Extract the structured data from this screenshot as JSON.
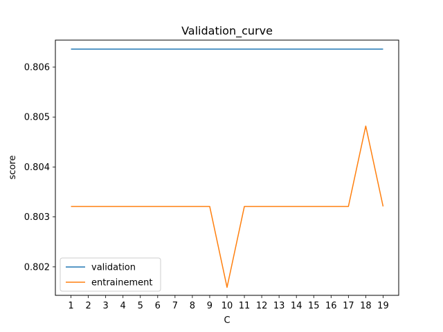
{
  "chart_data": {
    "type": "line",
    "title": "Validation_curve",
    "xlabel": "C",
    "ylabel": "score",
    "x": [
      1,
      2,
      3,
      4,
      5,
      6,
      7,
      8,
      9,
      10,
      11,
      12,
      13,
      14,
      15,
      16,
      17,
      18,
      19
    ],
    "xlim": [
      0.1,
      19.9
    ],
    "ylim": [
      0.80143,
      0.80654
    ],
    "yticks": [
      0.802,
      0.803,
      0.804,
      0.805,
      0.806
    ],
    "ytick_labels": [
      "0.802",
      "0.803",
      "0.804",
      "0.805",
      "0.806"
    ],
    "xtick_labels": [
      "1",
      "2",
      "3",
      "4",
      "5",
      "6",
      "7",
      "8",
      "9",
      "10",
      "11",
      "12",
      "13",
      "14",
      "15",
      "16",
      "17",
      "18",
      "19"
    ],
    "grid": false,
    "legend_position": "lower-left",
    "series": [
      {
        "name": "validation",
        "color": "#1f77b4",
        "values": [
          0.80636,
          0.80636,
          0.80636,
          0.80636,
          0.80636,
          0.80636,
          0.80636,
          0.80636,
          0.80636,
          0.80636,
          0.80636,
          0.80636,
          0.80636,
          0.80636,
          0.80636,
          0.80636,
          0.80636,
          0.80636,
          0.80636
        ]
      },
      {
        "name": "entrainement",
        "color": "#ff7f0e",
        "values": [
          0.80321,
          0.80321,
          0.80321,
          0.80321,
          0.80321,
          0.80321,
          0.80321,
          0.80321,
          0.80321,
          0.80159,
          0.80321,
          0.80321,
          0.80321,
          0.80321,
          0.80321,
          0.80321,
          0.80321,
          0.80482,
          0.80321
        ]
      }
    ]
  }
}
